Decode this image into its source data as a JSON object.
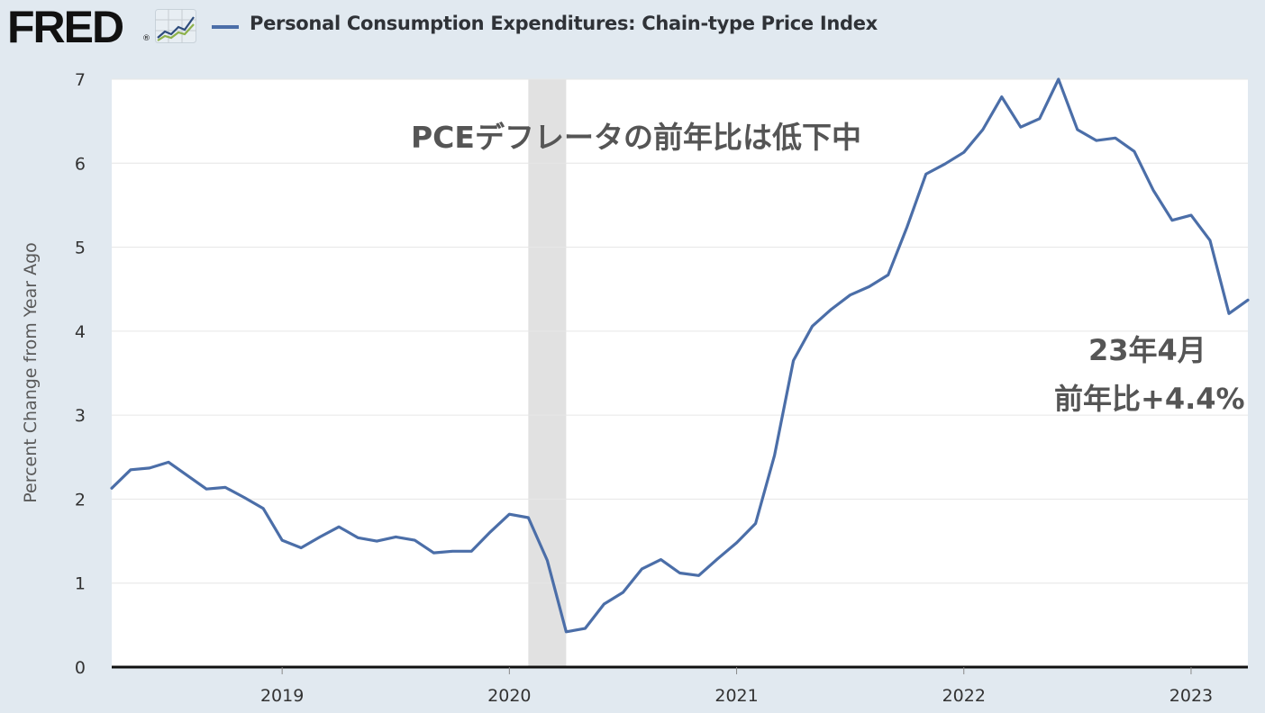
{
  "header": {
    "logo_text": "FRED",
    "logo_reg": "®",
    "series_name": "Personal Consumption Expenditures: Chain-type Price Index"
  },
  "annotations": {
    "title": "PCEデフレータの前年比は低下中",
    "latest_month": "23年4月",
    "latest_value": "前年比+4.4%"
  },
  "colors": {
    "series": "#4b6ea8",
    "recession": "#e1e1e1",
    "grid": "#e6e6e6",
    "background": "#e1e9f0"
  },
  "chart_data": {
    "type": "line",
    "ylabel": "Percent Change from Year Ago",
    "ylim": [
      0,
      7
    ],
    "yticks": [
      0,
      1,
      2,
      3,
      4,
      5,
      6,
      7
    ],
    "xlim": [
      "2018-04",
      "2023-04"
    ],
    "xticks": [
      "2019",
      "2020",
      "2021",
      "2022",
      "2023"
    ],
    "recession": {
      "start": "2020-02",
      "end": "2020-04"
    },
    "series": [
      {
        "x": [
          "2018-04",
          "2018-05",
          "2018-06",
          "2018-07",
          "2018-08",
          "2018-09",
          "2018-10",
          "2018-11",
          "2018-12",
          "2019-01",
          "2019-02",
          "2019-03",
          "2019-04",
          "2019-05",
          "2019-06",
          "2019-07",
          "2019-08",
          "2019-09",
          "2019-10",
          "2019-11",
          "2019-12",
          "2020-01",
          "2020-02",
          "2020-03",
          "2020-04",
          "2020-05",
          "2020-06",
          "2020-07",
          "2020-08",
          "2020-09",
          "2020-10",
          "2020-11",
          "2020-12",
          "2021-01",
          "2021-02",
          "2021-03",
          "2021-04",
          "2021-05",
          "2021-06",
          "2021-07",
          "2021-08",
          "2021-09",
          "2021-10",
          "2021-11",
          "2021-12",
          "2022-01",
          "2022-02",
          "2022-03",
          "2022-04",
          "2022-05",
          "2022-06",
          "2022-07",
          "2022-08",
          "2022-09",
          "2022-10",
          "2022-11",
          "2022-12",
          "2023-01",
          "2023-02",
          "2023-03",
          "2023-04"
        ],
        "values": [
          2.13,
          2.35,
          2.37,
          2.44,
          2.28,
          2.12,
          2.14,
          2.02,
          1.89,
          1.51,
          1.42,
          1.55,
          1.67,
          1.54,
          1.5,
          1.55,
          1.51,
          1.36,
          1.38,
          1.38,
          1.61,
          1.82,
          1.78,
          1.27,
          0.42,
          0.46,
          0.75,
          0.89,
          1.17,
          1.28,
          1.12,
          1.09,
          1.29,
          1.48,
          1.71,
          2.52,
          3.65,
          4.06,
          4.26,
          4.43,
          4.53,
          4.67,
          5.24,
          5.87,
          5.99,
          6.13,
          6.4,
          6.79,
          6.43,
          6.53,
          7.0,
          6.4,
          6.27,
          6.3,
          6.14,
          5.68,
          5.32,
          5.38,
          5.08,
          4.21,
          4.37
        ]
      }
    ]
  }
}
